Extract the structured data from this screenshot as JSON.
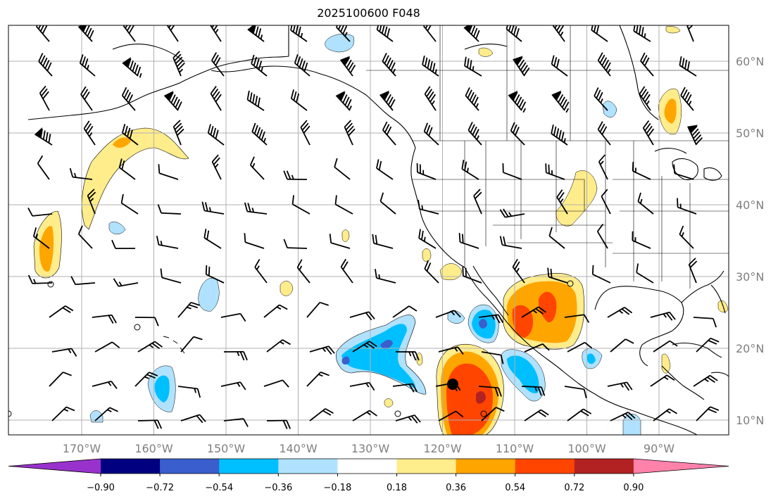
{
  "title": "2025100600 F048",
  "map": {
    "lat_labels": [
      "60°N",
      "50°N",
      "40°N",
      "30°N",
      "20°N",
      "10°N"
    ],
    "lat_values": [
      60,
      50,
      40,
      30,
      20,
      10
    ],
    "lon_labels": [
      "170°W",
      "160°W",
      "150°W",
      "140°W",
      "130°W",
      "120°W",
      "110°W",
      "100°W",
      "90°W"
    ],
    "lon_values": [
      -170,
      -160,
      -150,
      -140,
      -130,
      -120,
      -110,
      -100,
      -90
    ],
    "grid": true
  },
  "colorbar": {
    "tick_labels": [
      "−0.90",
      "−0.72",
      "−0.54",
      "−0.36",
      "−0.18",
      "0.18",
      "0.36",
      "0.54",
      "0.72",
      "0.90"
    ],
    "levels": [
      -0.9,
      -0.72,
      -0.54,
      -0.36,
      -0.18,
      0.18,
      0.36,
      0.54,
      0.72,
      0.9
    ],
    "colors": [
      "#9932cc",
      "#000080",
      "#3a5fcd",
      "#00bfff",
      "#b0e2ff",
      "#ffffff",
      "#ffec8b",
      "#ffa500",
      "#ff4500",
      "#b22222",
      "#ff82ab"
    ],
    "extend": "both"
  },
  "colors": {
    "grid": "#b0b0b0",
    "coast": "#000000",
    "tick_label": "#7f7f7f"
  }
}
